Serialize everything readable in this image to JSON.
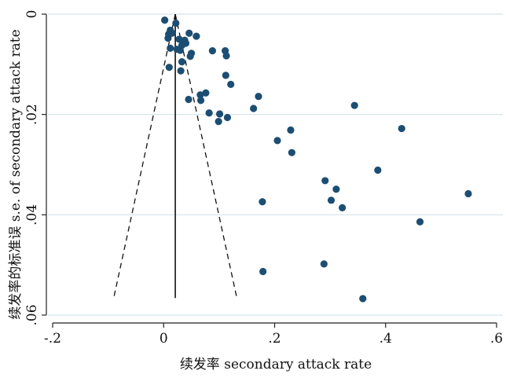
{
  "chart_data": {
    "type": "scatter",
    "title": "",
    "xlabel": "续发率 secondary attack rate",
    "ylabel": "续发率的标准误 s.e. of secondary attack rate",
    "xlim": [
      -0.2,
      0.6
    ],
    "ylim": [
      0,
      0.06
    ],
    "y_reversed": true,
    "x_ticks": [
      {
        "value": -0.2,
        "label": "-.2"
      },
      {
        "value": 0.0,
        "label": "0"
      },
      {
        "value": 0.2,
        "label": ".2"
      },
      {
        "value": 0.4,
        "label": ".4"
      },
      {
        "value": 0.6,
        "label": ".6"
      }
    ],
    "y_ticks": [
      {
        "value": 0.0,
        "label": "0"
      },
      {
        "value": 0.02,
        "label": ".02"
      },
      {
        "value": 0.04,
        "label": ".04"
      },
      {
        "value": 0.06,
        "label": ".06"
      }
    ],
    "grid": "horizontal",
    "colors": {
      "points": "#1c4e73",
      "lines": "#111111",
      "grid": "#d5e3ea",
      "axis": "#222222"
    },
    "pooled_estimate": 0.021,
    "funnel": {
      "apex": [
        0.021,
        0.0
      ],
      "base_y": 0.0566,
      "base_left": -0.09,
      "base_right": 0.132
    },
    "points": [
      {
        "x": 0.002,
        "y": 0.0012
      },
      {
        "x": 0.022,
        "y": 0.0018
      },
      {
        "x": 0.012,
        "y": 0.0032
      },
      {
        "x": 0.009,
        "y": 0.004
      },
      {
        "x": 0.015,
        "y": 0.0038
      },
      {
        "x": 0.008,
        "y": 0.0048
      },
      {
        "x": 0.028,
        "y": 0.005
      },
      {
        "x": 0.038,
        "y": 0.0052
      },
      {
        "x": 0.046,
        "y": 0.0038
      },
      {
        "x": 0.059,
        "y": 0.0044
      },
      {
        "x": 0.04,
        "y": 0.0058
      },
      {
        "x": 0.033,
        "y": 0.0062
      },
      {
        "x": 0.012,
        "y": 0.0068
      },
      {
        "x": 0.024,
        "y": 0.007
      },
      {
        "x": 0.03,
        "y": 0.0072
      },
      {
        "x": 0.05,
        "y": 0.0078
      },
      {
        "x": 0.048,
        "y": 0.0084
      },
      {
        "x": 0.088,
        "y": 0.0073
      },
      {
        "x": 0.111,
        "y": 0.0073
      },
      {
        "x": 0.113,
        "y": 0.0083
      },
      {
        "x": 0.033,
        "y": 0.0095
      },
      {
        "x": 0.01,
        "y": 0.0106
      },
      {
        "x": 0.031,
        "y": 0.0113
      },
      {
        "x": 0.112,
        "y": 0.0122
      },
      {
        "x": 0.121,
        "y": 0.014
      },
      {
        "x": 0.076,
        "y": 0.0157
      },
      {
        "x": 0.066,
        "y": 0.0161
      },
      {
        "x": 0.067,
        "y": 0.0172
      },
      {
        "x": 0.045,
        "y": 0.017
      },
      {
        "x": 0.171,
        "y": 0.0164
      },
      {
        "x": 0.162,
        "y": 0.0188
      },
      {
        "x": 0.082,
        "y": 0.0197
      },
      {
        "x": 0.101,
        "y": 0.0199
      },
      {
        "x": 0.115,
        "y": 0.0206
      },
      {
        "x": 0.099,
        "y": 0.0214
      },
      {
        "x": 0.344,
        "y": 0.0182
      },
      {
        "x": 0.429,
        "y": 0.0228
      },
      {
        "x": 0.229,
        "y": 0.0231
      },
      {
        "x": 0.205,
        "y": 0.0252
      },
      {
        "x": 0.231,
        "y": 0.0276
      },
      {
        "x": 0.386,
        "y": 0.0311
      },
      {
        "x": 0.291,
        "y": 0.0332
      },
      {
        "x": 0.311,
        "y": 0.0349
      },
      {
        "x": 0.549,
        "y": 0.0358
      },
      {
        "x": 0.302,
        "y": 0.0371
      },
      {
        "x": 0.178,
        "y": 0.0374
      },
      {
        "x": 0.322,
        "y": 0.0386
      },
      {
        "x": 0.462,
        "y": 0.0414
      },
      {
        "x": 0.289,
        "y": 0.0498
      },
      {
        "x": 0.179,
        "y": 0.0513
      },
      {
        "x": 0.359,
        "y": 0.0567
      }
    ]
  }
}
